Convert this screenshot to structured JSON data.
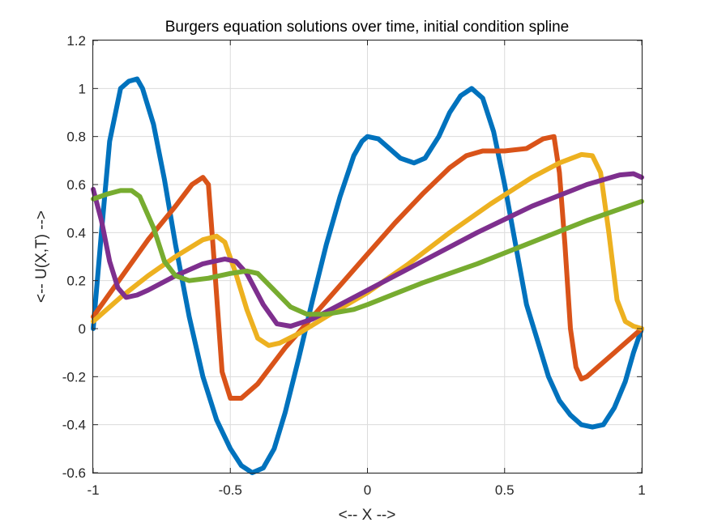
{
  "chart_data": {
    "type": "line",
    "title": "Burgers equation solutions over time, initial condition spline",
    "xlabel": "<-- X -->",
    "ylabel": "<-- U(X,T) -->",
    "xlim": [
      -1,
      1
    ],
    "ylim": [
      -0.6,
      1.2
    ],
    "xticks": [
      -1,
      -0.5,
      0,
      0.5,
      1
    ],
    "xtick_labels": [
      "-1",
      "-0.5",
      "0",
      "0.5",
      "1"
    ],
    "yticks": [
      -0.6,
      -0.4,
      -0.2,
      0,
      0.2,
      0.4,
      0.6,
      0.8,
      1,
      1.2
    ],
    "ytick_labels": [
      "-0.6",
      "-0.4",
      "-0.2",
      "0",
      "0.2",
      "0.4",
      "0.6",
      "0.8",
      "1",
      "1.2"
    ],
    "grid": true,
    "series": [
      {
        "color": "#0072BD",
        "points": [
          [
            -1,
            0
          ],
          [
            -0.97,
            0.4
          ],
          [
            -0.94,
            0.78
          ],
          [
            -0.9,
            1.0
          ],
          [
            -0.87,
            1.03
          ],
          [
            -0.84,
            1.04
          ],
          [
            -0.82,
            1.0
          ],
          [
            -0.78,
            0.85
          ],
          [
            -0.74,
            0.62
          ],
          [
            -0.7,
            0.35
          ],
          [
            -0.65,
            0.05
          ],
          [
            -0.6,
            -0.2
          ],
          [
            -0.55,
            -0.38
          ],
          [
            -0.5,
            -0.5
          ],
          [
            -0.46,
            -0.57
          ],
          [
            -0.42,
            -0.6
          ],
          [
            -0.38,
            -0.58
          ],
          [
            -0.34,
            -0.5
          ],
          [
            -0.3,
            -0.35
          ],
          [
            -0.25,
            -0.12
          ],
          [
            -0.2,
            0.12
          ],
          [
            -0.15,
            0.35
          ],
          [
            -0.1,
            0.55
          ],
          [
            -0.05,
            0.72
          ],
          [
            -0.02,
            0.78
          ],
          [
            0.0,
            0.8
          ],
          [
            0.04,
            0.79
          ],
          [
            0.08,
            0.75
          ],
          [
            0.12,
            0.71
          ],
          [
            0.17,
            0.69
          ],
          [
            0.21,
            0.71
          ],
          [
            0.26,
            0.8
          ],
          [
            0.3,
            0.9
          ],
          [
            0.34,
            0.97
          ],
          [
            0.38,
            1.0
          ],
          [
            0.42,
            0.96
          ],
          [
            0.46,
            0.82
          ],
          [
            0.5,
            0.6
          ],
          [
            0.54,
            0.35
          ],
          [
            0.58,
            0.1
          ],
          [
            0.62,
            -0.05
          ],
          [
            0.66,
            -0.2
          ],
          [
            0.7,
            -0.3
          ],
          [
            0.74,
            -0.36
          ],
          [
            0.78,
            -0.4
          ],
          [
            0.82,
            -0.41
          ],
          [
            0.86,
            -0.4
          ],
          [
            0.9,
            -0.33
          ],
          [
            0.94,
            -0.22
          ],
          [
            0.97,
            -0.1
          ],
          [
            1.0,
            0
          ]
        ]
      },
      {
        "color": "#D95319",
        "points": [
          [
            -1,
            0.05
          ],
          [
            -0.9,
            0.21
          ],
          [
            -0.8,
            0.37
          ],
          [
            -0.7,
            0.51
          ],
          [
            -0.64,
            0.6
          ],
          [
            -0.6,
            0.63
          ],
          [
            -0.58,
            0.6
          ],
          [
            -0.56,
            0.3
          ],
          [
            -0.53,
            -0.18
          ],
          [
            -0.5,
            -0.29
          ],
          [
            -0.46,
            -0.29
          ],
          [
            -0.4,
            -0.23
          ],
          [
            -0.3,
            -0.08
          ],
          [
            -0.2,
            0.05
          ],
          [
            -0.1,
            0.18
          ],
          [
            0.0,
            0.31
          ],
          [
            0.1,
            0.44
          ],
          [
            0.2,
            0.56
          ],
          [
            0.3,
            0.67
          ],
          [
            0.36,
            0.72
          ],
          [
            0.42,
            0.74
          ],
          [
            0.5,
            0.74
          ],
          [
            0.58,
            0.75
          ],
          [
            0.64,
            0.79
          ],
          [
            0.68,
            0.8
          ],
          [
            0.7,
            0.65
          ],
          [
            0.72,
            0.35
          ],
          [
            0.74,
            0.0
          ],
          [
            0.76,
            -0.16
          ],
          [
            0.78,
            -0.21
          ],
          [
            0.8,
            -0.2
          ],
          [
            0.85,
            -0.15
          ],
          [
            0.9,
            -0.1
          ],
          [
            0.95,
            -0.05
          ],
          [
            1.0,
            0
          ]
        ]
      },
      {
        "color": "#EDB120",
        "points": [
          [
            -1,
            0.03
          ],
          [
            -0.9,
            0.13
          ],
          [
            -0.8,
            0.22
          ],
          [
            -0.7,
            0.3
          ],
          [
            -0.6,
            0.37
          ],
          [
            -0.55,
            0.385
          ],
          [
            -0.52,
            0.36
          ],
          [
            -0.48,
            0.23
          ],
          [
            -0.44,
            0.08
          ],
          [
            -0.4,
            -0.04
          ],
          [
            -0.36,
            -0.07
          ],
          [
            -0.32,
            -0.06
          ],
          [
            -0.25,
            -0.02
          ],
          [
            -0.15,
            0.05
          ],
          [
            0.0,
            0.15
          ],
          [
            0.15,
            0.27
          ],
          [
            0.3,
            0.4
          ],
          [
            0.45,
            0.52
          ],
          [
            0.6,
            0.63
          ],
          [
            0.7,
            0.69
          ],
          [
            0.78,
            0.725
          ],
          [
            0.82,
            0.72
          ],
          [
            0.85,
            0.65
          ],
          [
            0.88,
            0.4
          ],
          [
            0.91,
            0.12
          ],
          [
            0.94,
            0.03
          ],
          [
            0.97,
            0.01
          ],
          [
            1.0,
            0.0
          ]
        ]
      },
      {
        "color": "#7E2F8E",
        "points": [
          [
            -1,
            0.58
          ],
          [
            -0.97,
            0.45
          ],
          [
            -0.94,
            0.28
          ],
          [
            -0.91,
            0.17
          ],
          [
            -0.88,
            0.13
          ],
          [
            -0.84,
            0.14
          ],
          [
            -0.8,
            0.16
          ],
          [
            -0.7,
            0.22
          ],
          [
            -0.6,
            0.27
          ],
          [
            -0.52,
            0.29
          ],
          [
            -0.48,
            0.28
          ],
          [
            -0.44,
            0.23
          ],
          [
            -0.38,
            0.1
          ],
          [
            -0.33,
            0.02
          ],
          [
            -0.28,
            0.01
          ],
          [
            -0.2,
            0.04
          ],
          [
            -0.1,
            0.1
          ],
          [
            0.0,
            0.16
          ],
          [
            0.2,
            0.28
          ],
          [
            0.4,
            0.4
          ],
          [
            0.6,
            0.51
          ],
          [
            0.8,
            0.6
          ],
          [
            0.92,
            0.64
          ],
          [
            0.97,
            0.645
          ],
          [
            1.0,
            0.63
          ]
        ]
      },
      {
        "color": "#77AC30",
        "points": [
          [
            -1,
            0.54
          ],
          [
            -0.95,
            0.56
          ],
          [
            -0.9,
            0.575
          ],
          [
            -0.86,
            0.575
          ],
          [
            -0.83,
            0.55
          ],
          [
            -0.78,
            0.42
          ],
          [
            -0.74,
            0.28
          ],
          [
            -0.7,
            0.22
          ],
          [
            -0.65,
            0.2
          ],
          [
            -0.58,
            0.21
          ],
          [
            -0.5,
            0.23
          ],
          [
            -0.44,
            0.24
          ],
          [
            -0.4,
            0.23
          ],
          [
            -0.34,
            0.16
          ],
          [
            -0.28,
            0.09
          ],
          [
            -0.22,
            0.06
          ],
          [
            -0.15,
            0.06
          ],
          [
            -0.05,
            0.08
          ],
          [
            0.0,
            0.1
          ],
          [
            0.2,
            0.19
          ],
          [
            0.4,
            0.27
          ],
          [
            0.6,
            0.36
          ],
          [
            0.8,
            0.45
          ],
          [
            1.0,
            0.53
          ]
        ]
      }
    ]
  }
}
